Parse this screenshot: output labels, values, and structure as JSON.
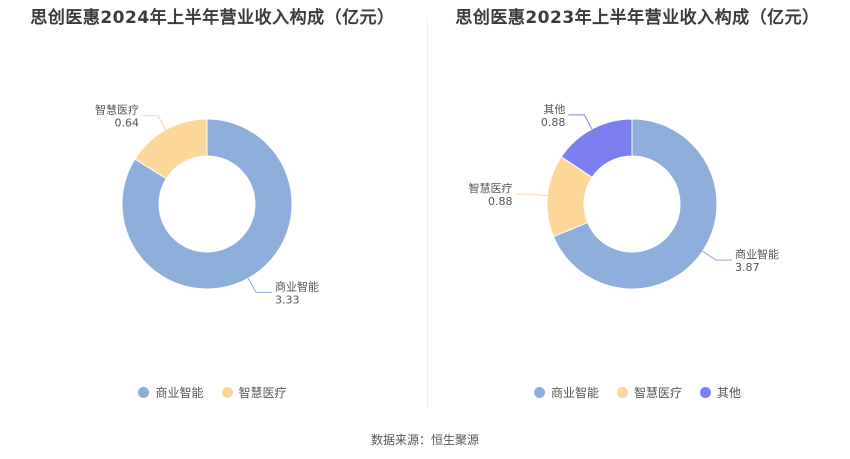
{
  "chart_data": [
    {
      "type": "pie",
      "title": "思创医惠2024年上半年营业收入构成（亿元）",
      "categories": [
        "商业智能",
        "智慧医疗"
      ],
      "values": [
        3.33,
        0.64
      ],
      "value_labels": [
        "3.33",
        "0.64"
      ],
      "colors": [
        "#8eaedb",
        "#fdd79a"
      ],
      "donut": true,
      "legend_position": "bottom"
    },
    {
      "type": "pie",
      "title": "思创医惠2023年上半年营业收入构成（亿元）",
      "categories": [
        "商业智能",
        "智慧医疗",
        "其他"
      ],
      "values": [
        3.87,
        0.88,
        0.88
      ],
      "value_labels": [
        "3.87",
        "0.88",
        "0.88"
      ],
      "colors": [
        "#8eaedb",
        "#fdd79a",
        "#7b7ff0"
      ],
      "donut": true,
      "legend_position": "bottom"
    }
  ],
  "source": "数据来源：恒生聚源"
}
